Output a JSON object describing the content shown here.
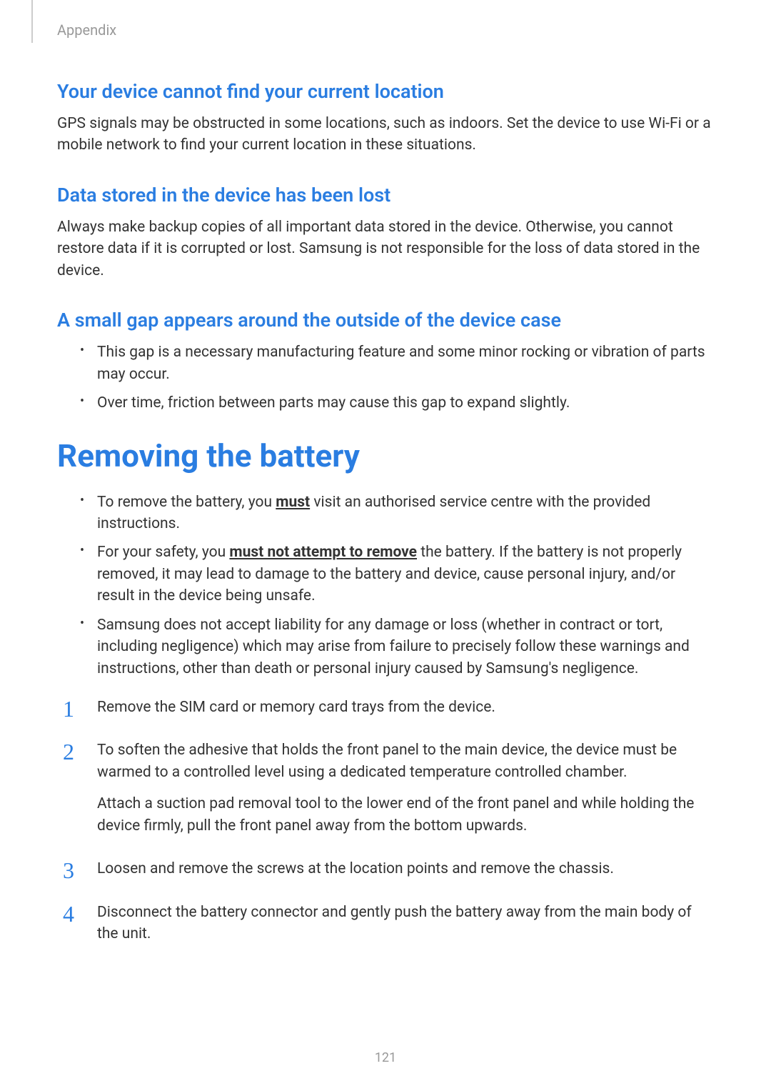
{
  "header": {
    "label": "Appendix"
  },
  "section1": {
    "heading": "Your device cannot find your current location",
    "body": "GPS signals may be obstructed in some locations, such as indoors. Set the device to use Wi-Fi or a mobile network to find your current location in these situations."
  },
  "section2": {
    "heading": "Data stored in the device has been lost",
    "body": "Always make backup copies of all important data stored in the device. Otherwise, you cannot restore data if it is corrupted or lost. Samsung is not responsible for the loss of data stored in the device."
  },
  "section3": {
    "heading": "A small gap appears around the outside of the device case",
    "bullets": [
      "This gap is a necessary manufacturing feature and some minor rocking or vibration of parts may occur.",
      "Over time, friction between parts may cause this gap to expand slightly."
    ]
  },
  "main": {
    "heading": "Removing the battery",
    "bullets": [
      {
        "pre": "To remove the battery, you ",
        "emph": "must",
        "post": " visit an authorised service centre with the provided instructions."
      },
      {
        "pre": "For your safety, you ",
        "emph": "must not attempt to remove",
        "post": " the battery. If the battery is not properly removed, it may lead to damage to the battery and device, cause personal injury, and/or result in the device being unsafe."
      },
      {
        "pre": "Samsung does not accept liability for any damage or loss (whether in contract or tort, including negligence) which may arise from failure to precisely follow these warnings and instructions, other than death or personal injury caused by Samsung's negligence.",
        "emph": "",
        "post": ""
      }
    ],
    "steps": [
      {
        "n": "1",
        "text": "Remove the SIM card or memory card trays from the device.",
        "sub": ""
      },
      {
        "n": "2",
        "text": "To soften the adhesive that holds the front panel to the main device, the device must be warmed to a controlled level using a dedicated temperature controlled chamber.",
        "sub": "Attach a suction pad removal tool to the lower end of the front panel and while holding the device firmly, pull the front panel away from the bottom upwards."
      },
      {
        "n": "3",
        "text": "Loosen and remove the screws at the location points and remove the chassis.",
        "sub": ""
      },
      {
        "n": "4",
        "text": "Disconnect the battery connector and gently push the battery away from the main body of the unit.",
        "sub": ""
      }
    ]
  },
  "pageNumber": "121",
  "colors": {
    "heading": "#2a7de1",
    "body": "#333333",
    "muted": "#999999",
    "background": "#ffffff"
  },
  "typography": {
    "section_heading_size": 27,
    "main_heading_size": 44,
    "body_size": 21,
    "step_number_size": 32
  }
}
